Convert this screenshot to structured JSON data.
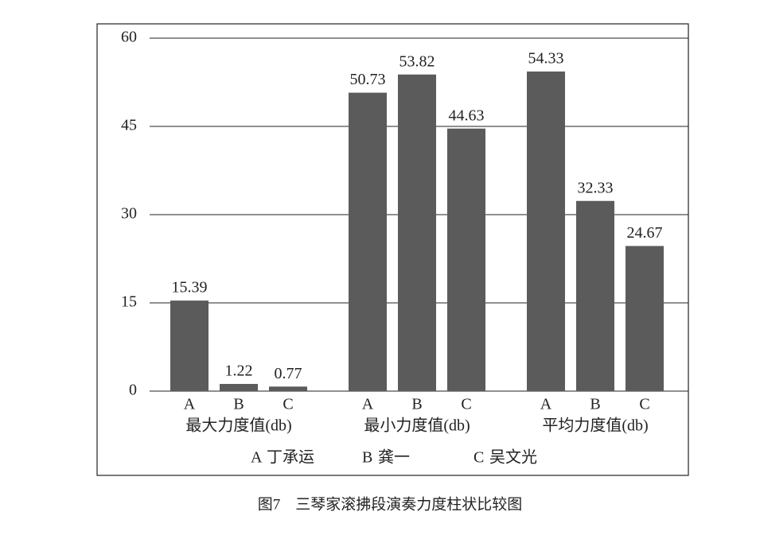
{
  "chart_data": {
    "type": "bar",
    "title": "图7　三琴家滚拂段演奏力度柱状比较图",
    "categories": [
      "最大力度值(db)",
      "最小力度值(db)",
      "平均力度值(db)"
    ],
    "series": [
      {
        "key": "A",
        "name": "丁承运",
        "color": "#5b5b5b",
        "values": [
          15.39,
          50.73,
          54.33
        ]
      },
      {
        "key": "B",
        "name": "龚一",
        "color": "#5b5b5b",
        "values": [
          1.22,
          53.82,
          32.33
        ]
      },
      {
        "key": "C",
        "name": "吴文光",
        "color": "#5b5b5b",
        "values": [
          0.77,
          44.63,
          24.67
        ]
      }
    ],
    "ylim": [
      0,
      60
    ],
    "yticks": [
      0,
      15,
      30,
      45,
      60
    ],
    "grid": true
  }
}
